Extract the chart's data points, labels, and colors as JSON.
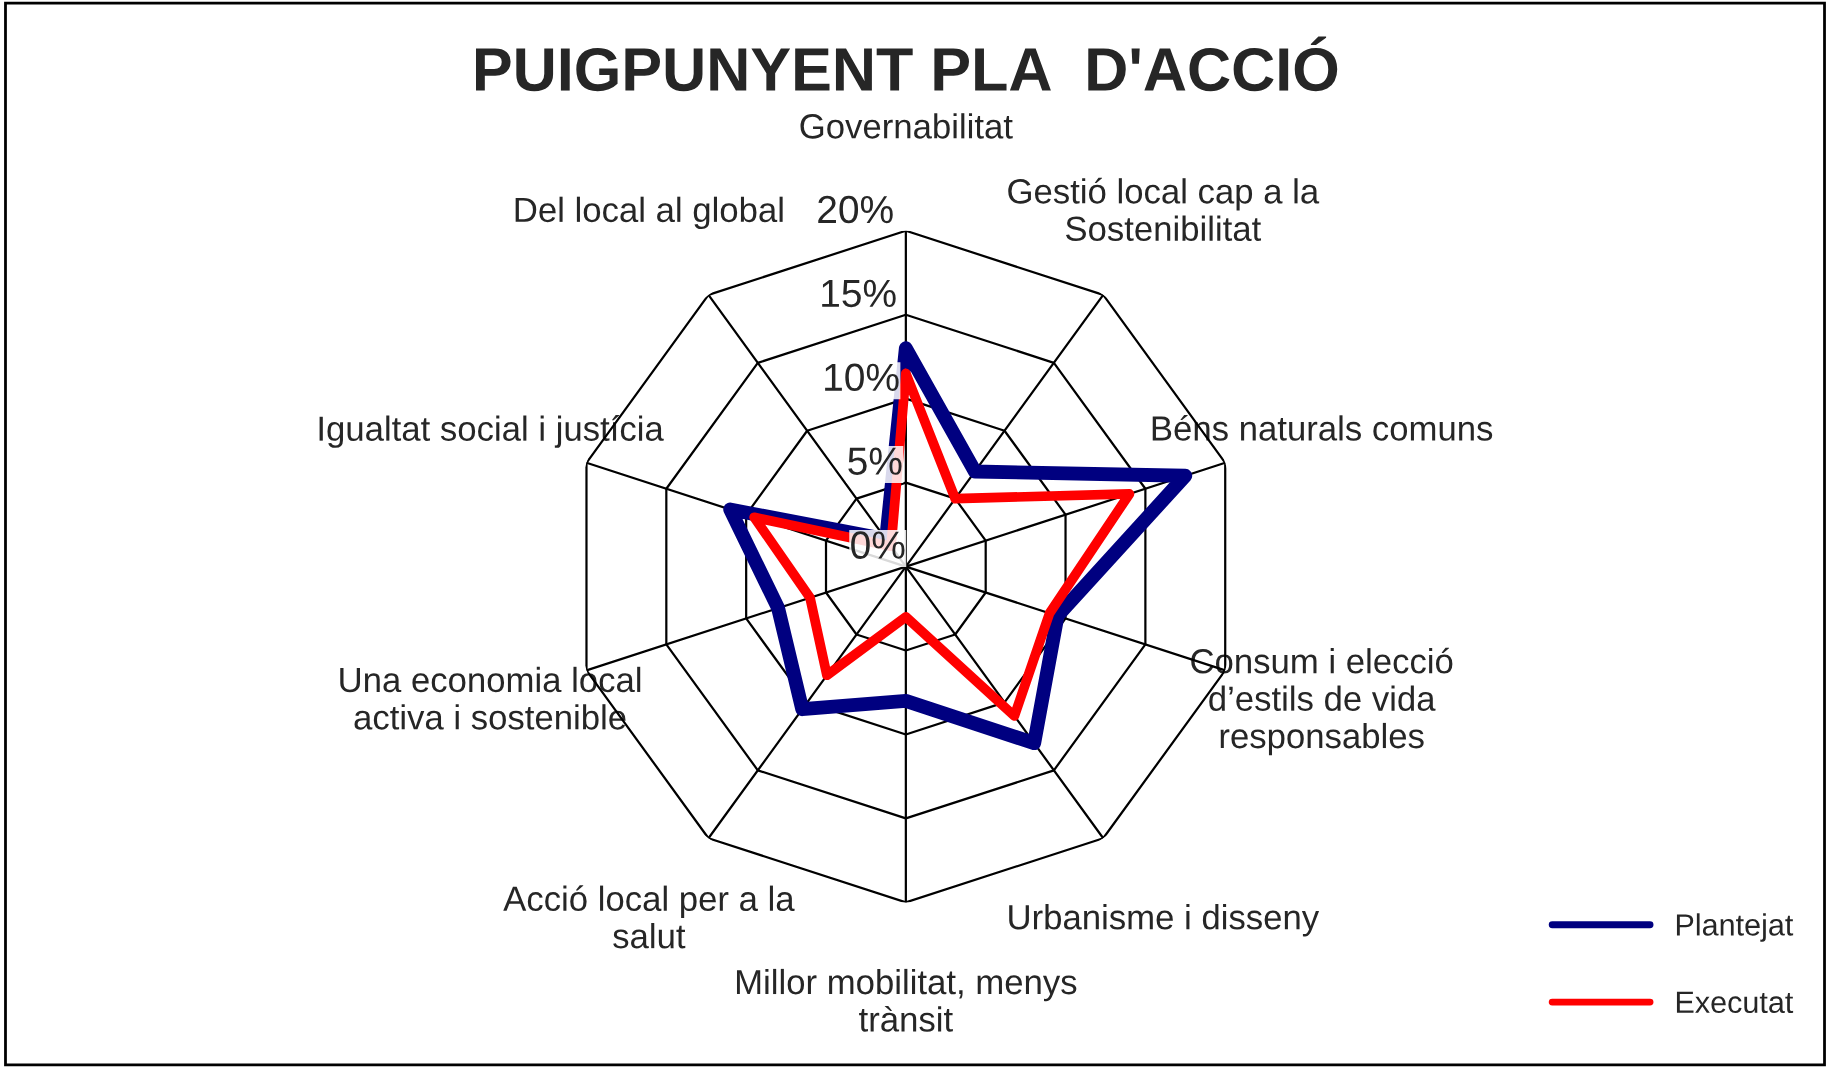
{
  "chart_data": {
    "type": "radar",
    "title": "PUIGPUNYENT PLA  D'ACCIÓ",
    "categories": [
      "Governabilitat",
      "Gestió local cap a la\nSostenibilitat",
      "Béns naturals comuns",
      "Consum i elecció\nd’estils de vida\nresponsables",
      "Urbanisme i disseny",
      "Millor mobilitat, menys\ntrànsit",
      "Acció local per a la\nsalut",
      "Una economia local\nactiva i sostenible",
      "Igualtat social i justícia",
      "Del local al global"
    ],
    "series": [
      {
        "name": "Plantejat",
        "color": "#000080",
        "values": [
          13,
          7,
          17.5,
          9.5,
          13,
          8,
          10.5,
          8,
          11,
          2
        ]
      },
      {
        "name": "Executat",
        "color": "#ff0000",
        "values": [
          11.5,
          5,
          14,
          9,
          11,
          3,
          8,
          6,
          9.5,
          1.5
        ]
      }
    ],
    "ylim": [
      0,
      20
    ],
    "yticks": [
      {
        "value": 0,
        "label": "0%"
      },
      {
        "value": 5,
        "label": "5%"
      },
      {
        "value": 10,
        "label": "10%"
      },
      {
        "value": 15,
        "label": "15%"
      },
      {
        "value": 20,
        "label": "20%"
      }
    ],
    "grid": true,
    "legend": "bottom right",
    "marker": "none",
    "line_style": "solid"
  }
}
